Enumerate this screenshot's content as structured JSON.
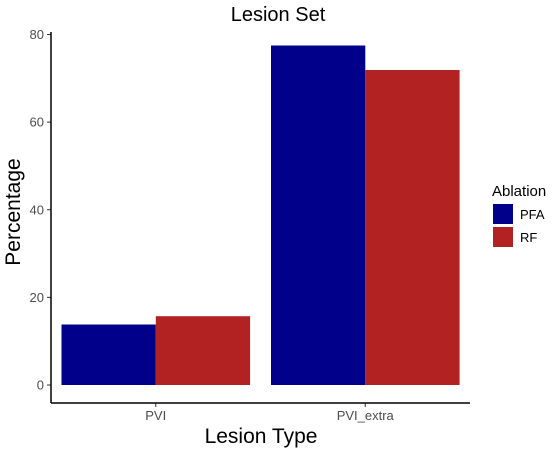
{
  "chart_data": {
    "type": "bar",
    "title": "Lesion Set",
    "xlabel": "Lesion Type",
    "ylabel": "Percentage",
    "categories": [
      "PVI",
      "PVI_extra"
    ],
    "series": [
      {
        "name": "PFA",
        "values": [
          13.8,
          77.5
        ],
        "color": "#00008b"
      },
      {
        "name": "RF",
        "values": [
          15.7,
          71.9
        ],
        "color": "#b22222"
      }
    ],
    "ylim": [
      0,
      80
    ],
    "yticks": [
      0,
      20,
      40,
      60,
      80
    ],
    "grid": false,
    "legend": {
      "title": "Ablation",
      "placement": "right"
    }
  }
}
